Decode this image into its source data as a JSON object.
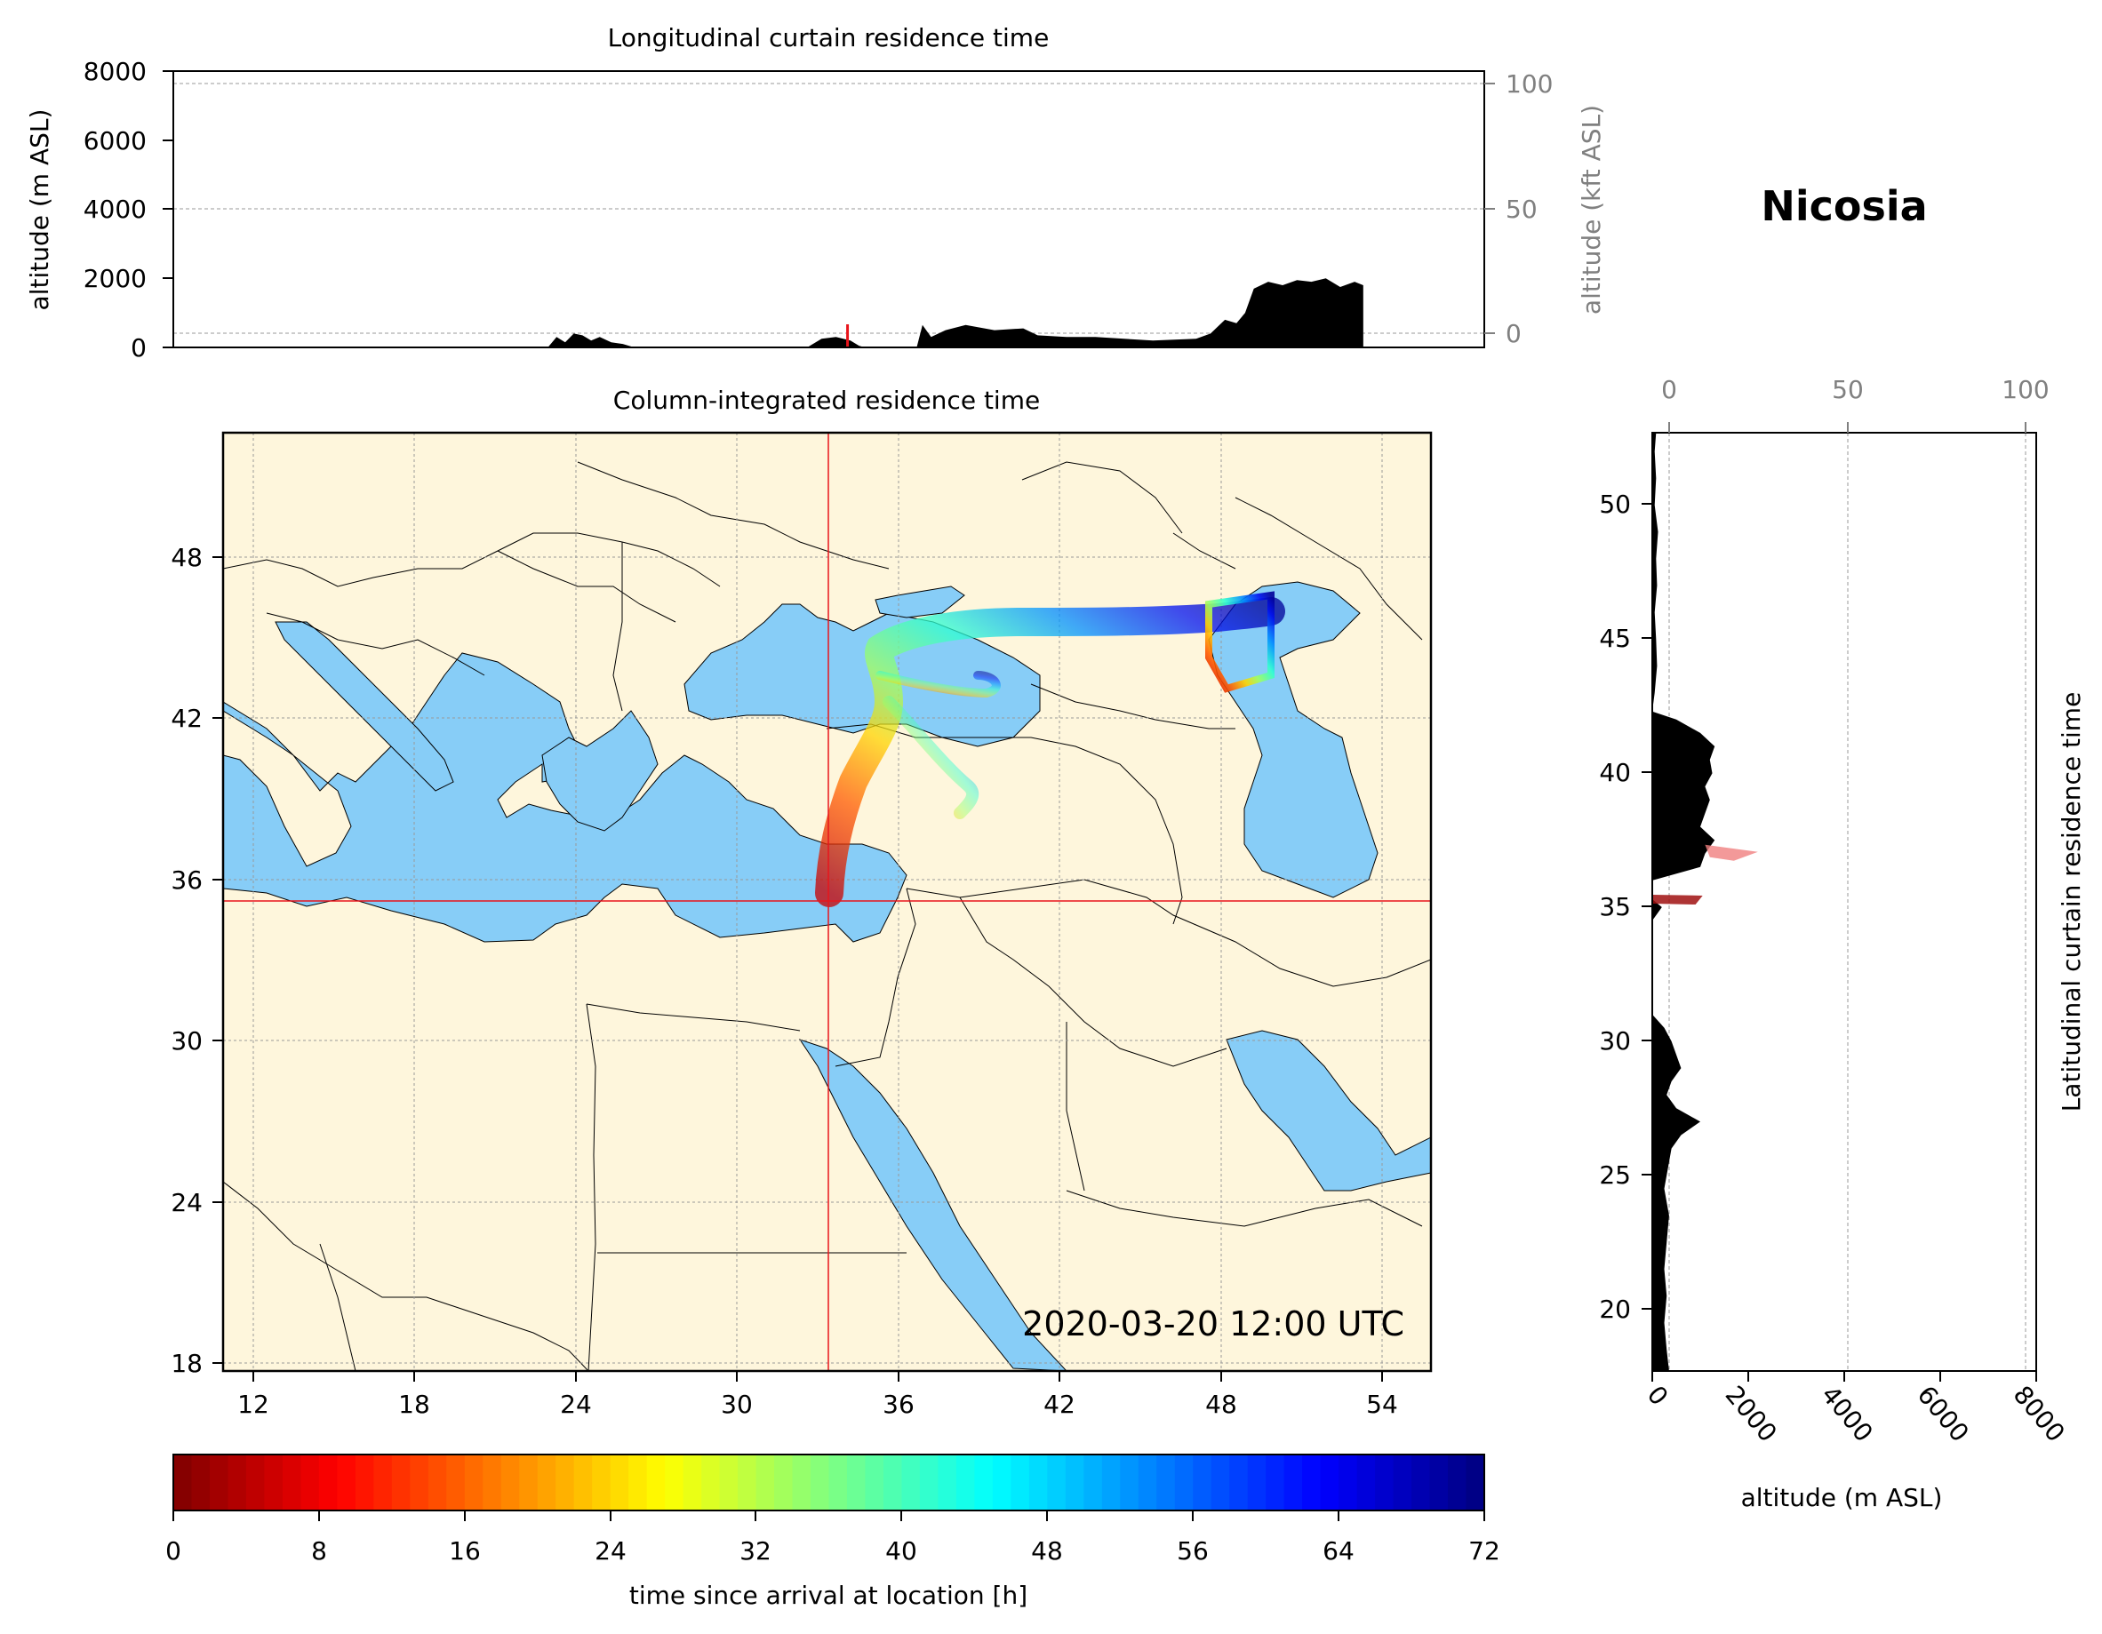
{
  "location_name": "Nicosia",
  "timestamp": "2020-03-20 12:00 UTC",
  "colors": {
    "land": "#fef6dc",
    "sea": "#87cdf7",
    "marker": "#e8141b",
    "profile": "#000000",
    "colormap": [
      "#7f0000",
      "#ff0000",
      "#ff8000",
      "#ffff00",
      "#80ff80",
      "#00ffff",
      "#0080ff",
      "#0000ff",
      "#00007f"
    ]
  },
  "top_panel": {
    "title": "Longitudinal curtain residence time",
    "ylabel_left": "altitude (m ASL)",
    "ylabel_right": "altitude (kft ASL)",
    "left_ticks": [
      "0",
      "2000",
      "4000",
      "6000",
      "8000"
    ],
    "right_ticks": [
      "0",
      "50",
      "100"
    ],
    "ylim": [
      0,
      8000
    ],
    "xlim": [
      10,
      55.5
    ],
    "profile_lon": [
      23.0,
      23.3,
      23.6,
      23.9,
      24.2,
      24.5,
      24.8,
      25.2,
      25.6,
      26.0,
      27.0,
      27.5,
      30.0,
      32.0,
      32.5,
      33.0,
      33.5,
      33.8,
      34.0,
      35.8,
      36.0,
      36.3,
      36.8,
      37.5,
      38.5,
      39.5,
      40.0,
      41.0,
      42.0,
      43.0,
      44.0,
      45.5,
      46.0,
      46.5,
      46.9,
      47.2,
      47.5,
      48.0,
      48.5,
      49.0,
      49.5,
      50.0,
      50.5,
      51.0,
      51.3
    ],
    "profile_alt": [
      0,
      300,
      150,
      400,
      350,
      200,
      300,
      150,
      100,
      0,
      0,
      0,
      0,
      0,
      250,
      300,
      200,
      50,
      0,
      0,
      650,
      300,
      500,
      650,
      500,
      550,
      350,
      300,
      300,
      250,
      200,
      250,
      400,
      800,
      700,
      1000,
      1700,
      1900,
      1800,
      1950,
      1900,
      2000,
      1750,
      1900,
      1800
    ],
    "marker_lon": 33.4
  },
  "map_panel": {
    "title": "Column-integrated residence time",
    "lon_ticks": [
      "12",
      "18",
      "24",
      "30",
      "36",
      "42",
      "48",
      "54"
    ],
    "lat_ticks": [
      "18",
      "24",
      "30",
      "36",
      "42",
      "48"
    ],
    "lon_range": [
      10.9,
      55.8
    ],
    "lat_range": [
      18,
      52.9
    ],
    "release_lon": 33.4,
    "release_lat": 35.3
  },
  "side_panel": {
    "title": "Latitudinal curtain residence time",
    "xlabel": "altitude (m ASL)",
    "bottom_ticks": [
      "0",
      "2000",
      "4000",
      "6000",
      "8000"
    ],
    "top_ticks": [
      "0",
      "50",
      "100"
    ],
    "lat_ticks": [
      "20",
      "25",
      "30",
      "35",
      "40",
      "45",
      "50"
    ],
    "xlim": [
      0,
      8000
    ],
    "ylim": [
      17.7,
      52.7
    ],
    "profile_lat": [
      17.7,
      18.5,
      19.5,
      20.5,
      21.5,
      22.5,
      23.5,
      24.5,
      25.5,
      26.0,
      26.5,
      27.0,
      27.5,
      28.0,
      28.5,
      29.0,
      29.5,
      30.0,
      30.5,
      31.0,
      34.5,
      35.0,
      35.3,
      35.6,
      36.0,
      36.5,
      37.0,
      37.5,
      38.0,
      38.5,
      39.0,
      39.5,
      40.0,
      40.5,
      41.0,
      41.5,
      42.0,
      42.3,
      43.0,
      44.0,
      45.0,
      46.0,
      47.0,
      48.0,
      49.0,
      50.0,
      51.0,
      52.0,
      52.7
    ],
    "profile_alt": [
      350,
      300,
      250,
      300,
      250,
      300,
      350,
      250,
      350,
      400,
      600,
      1000,
      500,
      300,
      400,
      600,
      500,
      400,
      250,
      0,
      0,
      200,
      0,
      0,
      0,
      1000,
      1100,
      1300,
      1000,
      1100,
      1200,
      1100,
      1250,
      1200,
      1300,
      1000,
      500,
      0,
      50,
      100,
      80,
      50,
      100,
      80,
      120,
      50,
      80,
      50,
      80
    ],
    "red_plumes_lat": [
      35.3,
      37.0
    ]
  },
  "colorbar": {
    "label": "time since arrival at location [h]",
    "ticks": [
      "0",
      "8",
      "16",
      "24",
      "32",
      "40",
      "48",
      "56",
      "64",
      "72"
    ],
    "range": [
      0,
      72
    ]
  }
}
